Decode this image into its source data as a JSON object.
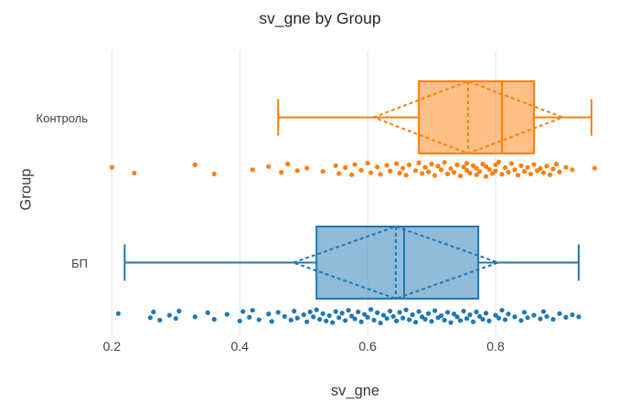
{
  "figure": {
    "title": "sv_gne by Group",
    "background": "#ffffff",
    "grid_color": "#e6e6e6",
    "tick_color": "#3a414d",
    "title_color": "#1e2430"
  },
  "chart_data": {
    "type": "box",
    "orientation": "horizontal",
    "title": "sv_gne by Group",
    "xlabel": "sv_gne",
    "ylabel": "Group",
    "xlim": [
      0.168,
      0.993
    ],
    "xticks": [
      0.2,
      0.4,
      0.6,
      0.8
    ],
    "xtick_labels": [
      "0.2",
      "0.4",
      "0.6",
      "0.8"
    ],
    "grid": true,
    "legend": "none",
    "box_fill_opacity": 0.5,
    "categories": [
      "Контроль",
      "БП"
    ],
    "series": [
      {
        "name": "Контроль",
        "color": "#ff7f0e",
        "whisker_min": 0.46,
        "q1": 0.68,
        "median": 0.81,
        "q3": 0.86,
        "whisker_max": 0.95,
        "mean": 0.757,
        "sd": 0.148,
        "points": [
          [
            0.2,
            -0.2
          ],
          [
            0.235,
            0.5
          ],
          [
            0.33,
            -0.5
          ],
          [
            0.36,
            0.6
          ],
          [
            0.42,
            0.1
          ],
          [
            0.445,
            -0.3
          ],
          [
            0.465,
            0.4
          ],
          [
            0.475,
            -0.6
          ],
          [
            0.49,
            0.2
          ],
          [
            0.505,
            -0.1
          ],
          [
            0.53,
            0.3
          ],
          [
            0.55,
            -0.4
          ],
          [
            0.555,
            0.55
          ],
          [
            0.565,
            -0.15
          ],
          [
            0.575,
            0.7
          ],
          [
            0.58,
            -0.55
          ],
          [
            0.59,
            0.15
          ],
          [
            0.6,
            -0.7
          ],
          [
            0.605,
            0.45
          ],
          [
            0.615,
            -0.25
          ],
          [
            0.62,
            0.65
          ],
          [
            0.63,
            -0.45
          ],
          [
            0.635,
            0.25
          ],
          [
            0.645,
            -0.65
          ],
          [
            0.65,
            0.5
          ],
          [
            0.655,
            -0.1
          ],
          [
            0.66,
            0.75
          ],
          [
            0.665,
            -0.5
          ],
          [
            0.675,
            0.2
          ],
          [
            0.68,
            -0.75
          ],
          [
            0.685,
            0.55
          ],
          [
            0.69,
            -0.2
          ],
          [
            0.695,
            0.35
          ],
          [
            0.7,
            -0.6
          ],
          [
            0.705,
            0.8
          ],
          [
            0.71,
            -0.35
          ],
          [
            0.715,
            0.1
          ],
          [
            0.72,
            -0.8
          ],
          [
            0.725,
            0.6
          ],
          [
            0.73,
            -0.05
          ],
          [
            0.735,
            0.4
          ],
          [
            0.74,
            -0.5
          ],
          [
            0.745,
            0.85
          ],
          [
            0.75,
            -0.25
          ],
          [
            0.755,
            0.15
          ],
          [
            0.755,
            -0.7
          ],
          [
            0.76,
            0.5
          ],
          [
            0.765,
            -0.4
          ],
          [
            0.77,
            0.7
          ],
          [
            0.77,
            -0.1
          ],
          [
            0.775,
            0.3
          ],
          [
            0.78,
            -0.6
          ],
          [
            0.785,
            0.9
          ],
          [
            0.785,
            -0.3
          ],
          [
            0.79,
            0.05
          ],
          [
            0.795,
            0.55
          ],
          [
            0.8,
            -0.5
          ],
          [
            0.8,
            0.25
          ],
          [
            0.805,
            -0.85
          ],
          [
            0.81,
            0.65
          ],
          [
            0.815,
            -0.15
          ],
          [
            0.82,
            0.4
          ],
          [
            0.825,
            -0.65
          ],
          [
            0.83,
            0.1
          ],
          [
            0.835,
            0.75
          ],
          [
            0.84,
            -0.4
          ],
          [
            0.845,
            0.3
          ],
          [
            0.85,
            -0.2
          ],
          [
            0.855,
            0.6
          ],
          [
            0.86,
            -0.55
          ],
          [
            0.865,
            0.2
          ],
          [
            0.87,
            -0.05
          ],
          [
            0.875,
            0.45
          ],
          [
            0.88,
            -0.35
          ],
          [
            0.885,
            0.7
          ],
          [
            0.89,
            0.0
          ],
          [
            0.895,
            -0.6
          ],
          [
            0.9,
            0.35
          ],
          [
            0.91,
            -0.2
          ],
          [
            0.92,
            0.1
          ],
          [
            0.955,
            -0.1
          ]
        ]
      },
      {
        "name": "БП",
        "color": "#1f77b4",
        "whisker_min": 0.22,
        "q1": 0.52,
        "median": 0.657,
        "q3": 0.773,
        "whisker_max": 0.93,
        "mean": 0.644,
        "sd": 0.16,
        "points": [
          [
            0.21,
            -0.3
          ],
          [
            0.26,
            0.2
          ],
          [
            0.265,
            -0.5
          ],
          [
            0.275,
            0.5
          ],
          [
            0.29,
            -0.1
          ],
          [
            0.3,
            0.3
          ],
          [
            0.305,
            -0.6
          ],
          [
            0.33,
            0.1
          ],
          [
            0.35,
            -0.4
          ],
          [
            0.36,
            0.4
          ],
          [
            0.38,
            -0.2
          ],
          [
            0.4,
            0.6
          ],
          [
            0.405,
            -0.55
          ],
          [
            0.415,
            0.15
          ],
          [
            0.42,
            -0.7
          ],
          [
            0.43,
            0.45
          ],
          [
            0.445,
            -0.25
          ],
          [
            0.45,
            0.65
          ],
          [
            0.46,
            -0.45
          ],
          [
            0.47,
            0.05
          ],
          [
            0.48,
            0.5
          ],
          [
            0.485,
            -0.6
          ],
          [
            0.49,
            0.25
          ],
          [
            0.5,
            -0.15
          ],
          [
            0.505,
            0.7
          ],
          [
            0.51,
            -0.5
          ],
          [
            0.515,
            0.1
          ],
          [
            0.52,
            -0.75
          ],
          [
            0.525,
            0.4
          ],
          [
            0.53,
            -0.3
          ],
          [
            0.535,
            0.6
          ],
          [
            0.54,
            -0.05
          ],
          [
            0.545,
            0.8
          ],
          [
            0.55,
            -0.55
          ],
          [
            0.555,
            0.2
          ],
          [
            0.56,
            -0.35
          ],
          [
            0.565,
            0.55
          ],
          [
            0.57,
            -0.7
          ],
          [
            0.575,
            0.0
          ],
          [
            0.58,
            0.35
          ],
          [
            0.585,
            -0.5
          ],
          [
            0.59,
            0.7
          ],
          [
            0.595,
            -0.2
          ],
          [
            0.6,
            0.15
          ],
          [
            0.605,
            -0.8
          ],
          [
            0.61,
            0.5
          ],
          [
            0.615,
            -0.4
          ],
          [
            0.62,
            0.85
          ],
          [
            0.625,
            -0.1
          ],
          [
            0.63,
            0.3
          ],
          [
            0.635,
            -0.6
          ],
          [
            0.64,
            0.05
          ],
          [
            0.645,
            0.6
          ],
          [
            0.65,
            -0.45
          ],
          [
            0.655,
            0.25
          ],
          [
            0.66,
            -0.75
          ],
          [
            0.665,
            0.45
          ],
          [
            0.67,
            -0.15
          ],
          [
            0.675,
            0.75
          ],
          [
            0.68,
            -0.55
          ],
          [
            0.685,
            0.1
          ],
          [
            0.69,
            0.4
          ],
          [
            0.695,
            -0.3
          ],
          [
            0.7,
            0.65
          ],
          [
            0.705,
            -0.65
          ],
          [
            0.71,
            0.2
          ],
          [
            0.715,
            -0.05
          ],
          [
            0.72,
            0.5
          ],
          [
            0.725,
            -0.45
          ],
          [
            0.73,
            0.8
          ],
          [
            0.735,
            -0.25
          ],
          [
            0.74,
            0.1
          ],
          [
            0.745,
            0.55
          ],
          [
            0.75,
            -0.6
          ],
          [
            0.755,
            0.3
          ],
          [
            0.76,
            -0.15
          ],
          [
            0.765,
            0.7
          ],
          [
            0.77,
            -0.5
          ],
          [
            0.775,
            0.05
          ],
          [
            0.78,
            0.4
          ],
          [
            0.785,
            -0.35
          ],
          [
            0.79,
            0.6
          ],
          [
            0.8,
            -0.1
          ],
          [
            0.805,
            0.25
          ],
          [
            0.81,
            -0.7
          ],
          [
            0.815,
            0.45
          ],
          [
            0.82,
            -0.25
          ],
          [
            0.83,
            0.1
          ],
          [
            0.84,
            0.55
          ],
          [
            0.845,
            -0.45
          ],
          [
            0.85,
            0.2
          ],
          [
            0.86,
            -0.1
          ],
          [
            0.87,
            0.35
          ],
          [
            0.875,
            -0.55
          ],
          [
            0.88,
            0.05
          ],
          [
            0.89,
            0.4
          ],
          [
            0.9,
            -0.3
          ],
          [
            0.91,
            0.15
          ],
          [
            0.92,
            -0.15
          ],
          [
            0.93,
            0.1
          ]
        ]
      }
    ]
  }
}
